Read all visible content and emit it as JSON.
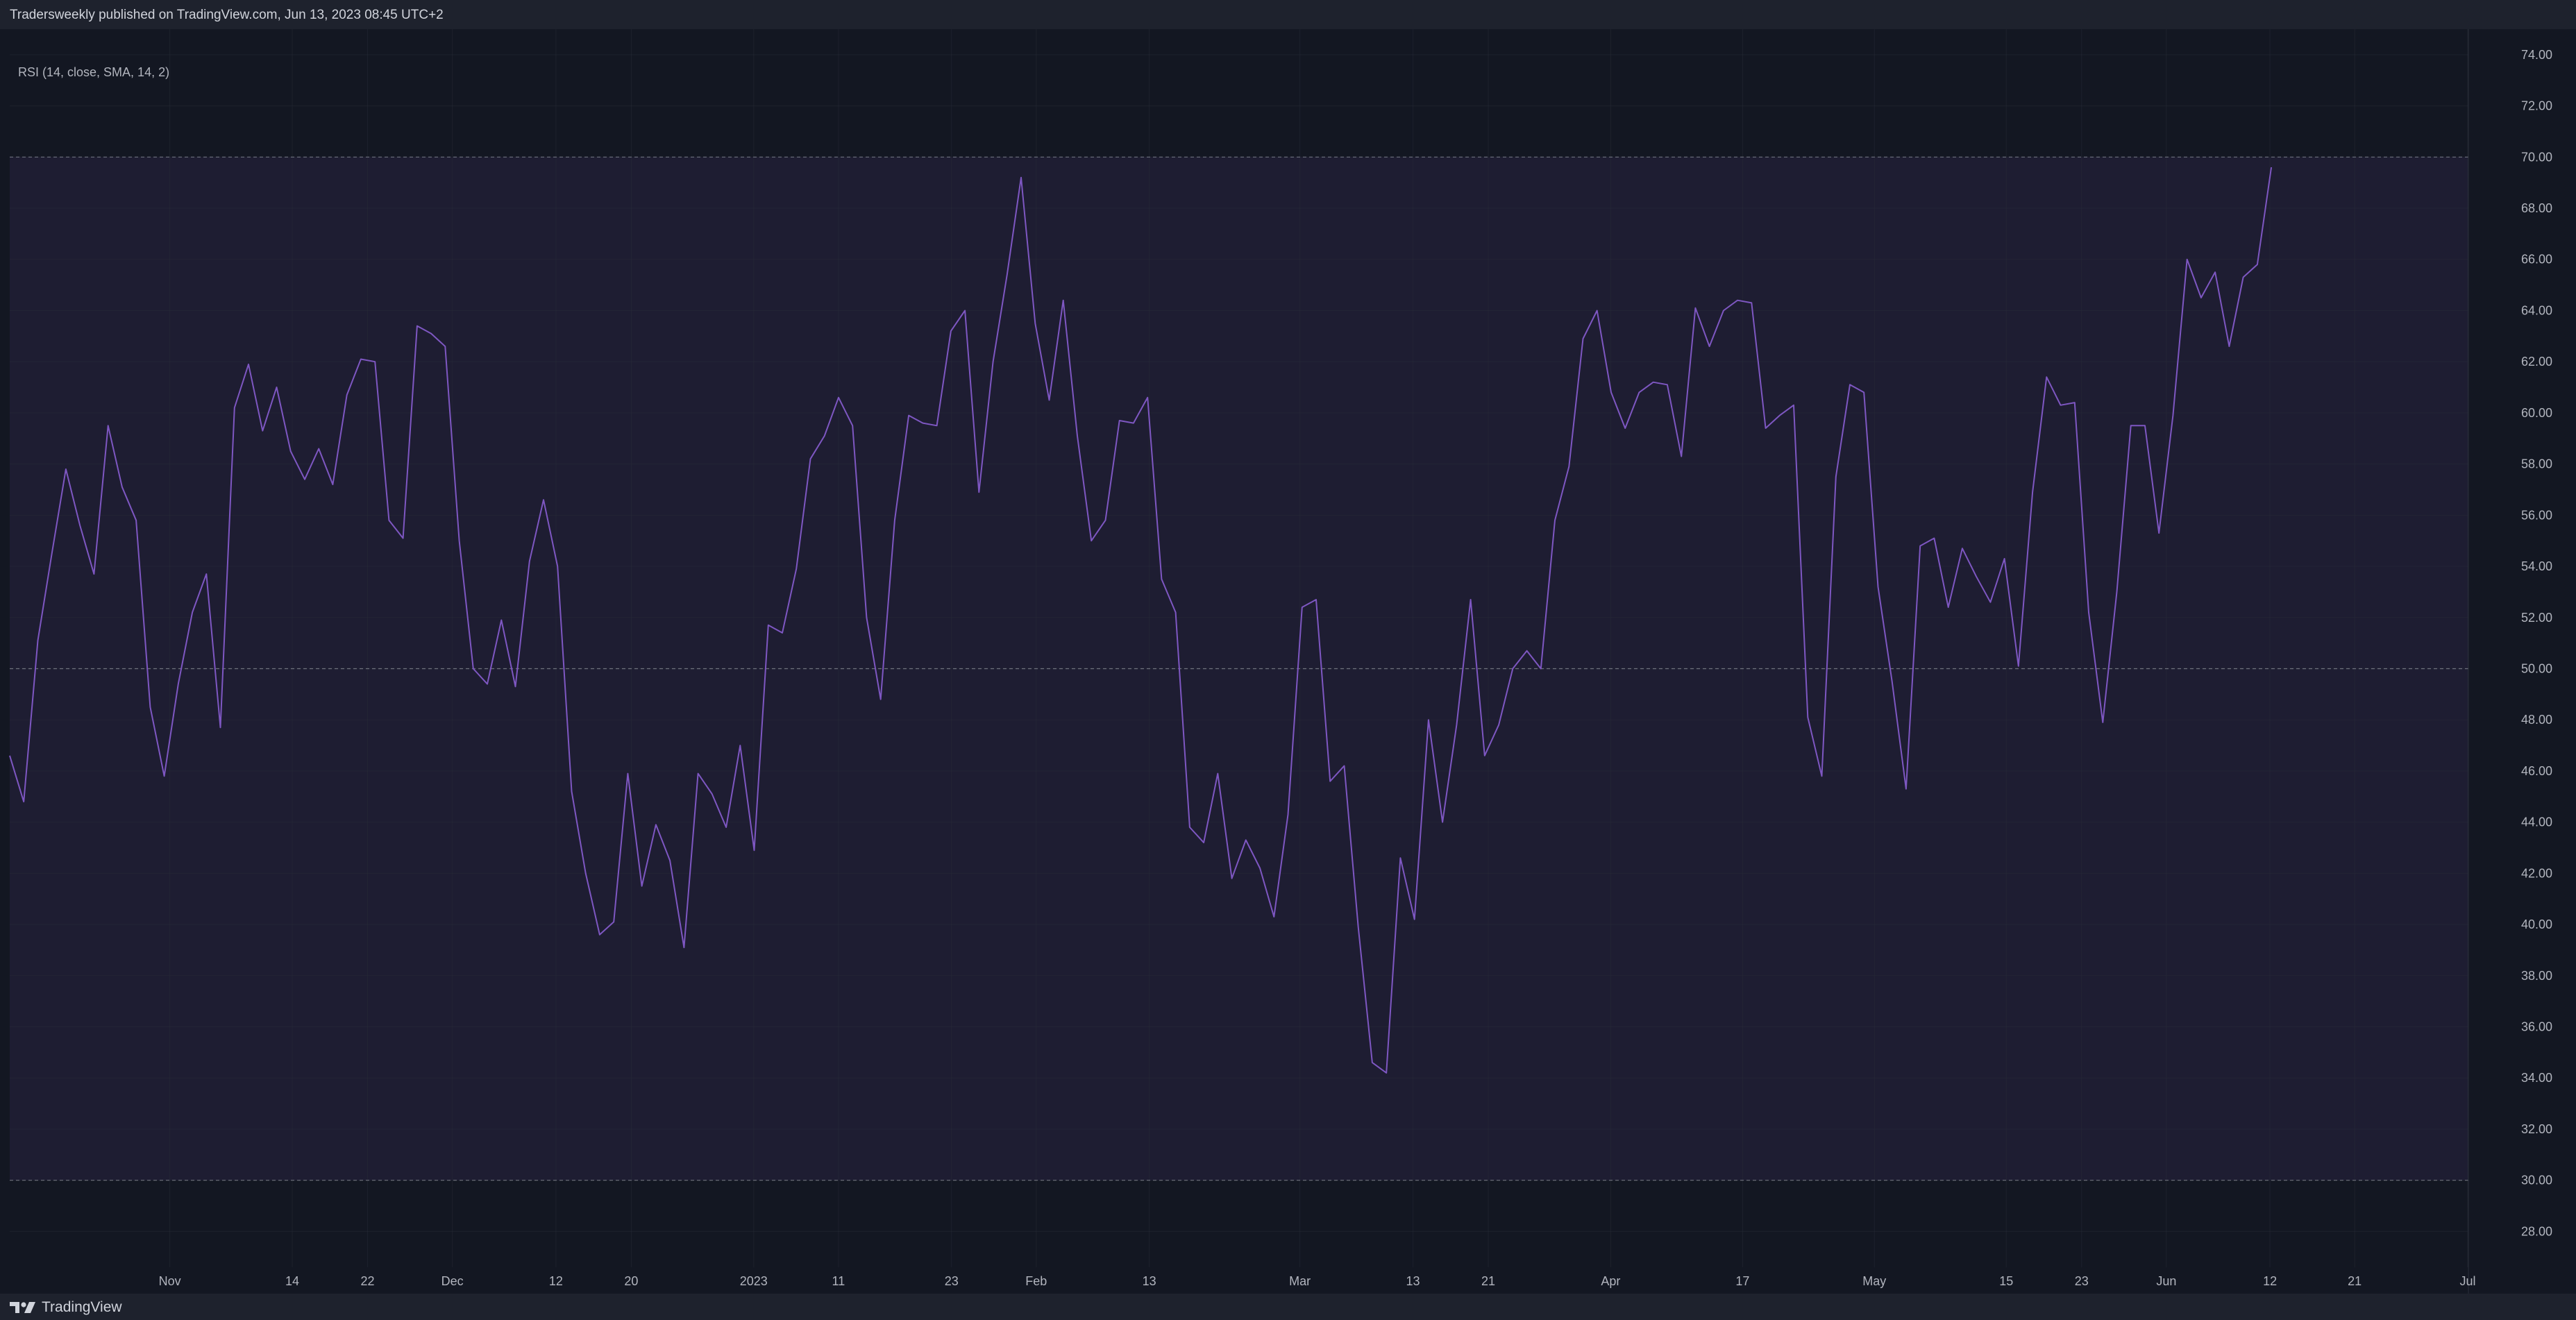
{
  "header": {
    "publisher_text": "Tradersweekly published on TradingView.com, Jun 13, 2023 08:45 UTC+2"
  },
  "indicator": {
    "label": "RSI (14, close, SMA, 14, 2)"
  },
  "footer": {
    "brand": "TradingView",
    "logo_icon": "tradingview-logo-icon"
  },
  "colors": {
    "background": "#131722",
    "frame": "#1e222d",
    "band_fill": "#7e57c2",
    "rsi_line": "#7e57c2",
    "band_line": "#787b86",
    "grid": "#2a2e39",
    "text": "#b2b5be"
  },
  "chart_data": {
    "type": "line",
    "title": "",
    "xlabel": "",
    "ylabel": "",
    "ylim": [
      26.6,
      75.0
    ],
    "grid": true,
    "y_ticks": [
      "28.00",
      "30.00",
      "32.00",
      "34.00",
      "36.00",
      "38.00",
      "40.00",
      "42.00",
      "44.00",
      "46.00",
      "48.00",
      "50.00",
      "52.00",
      "54.00",
      "56.00",
      "58.00",
      "60.00",
      "62.00",
      "64.00",
      "66.00",
      "68.00",
      "70.00",
      "72.00",
      "74.00"
    ],
    "x_tick_labels": [
      {
        "label": "Nov",
        "date": "2022-11-01"
      },
      {
        "label": "14",
        "date": "2022-11-14"
      },
      {
        "label": "22",
        "date": "2022-11-22"
      },
      {
        "label": "Dec",
        "date": "2022-12-01"
      },
      {
        "label": "12",
        "date": "2022-12-12"
      },
      {
        "label": "20",
        "date": "2022-12-20"
      },
      {
        "label": "2023",
        "date": "2023-01-02"
      },
      {
        "label": "11",
        "date": "2023-01-11"
      },
      {
        "label": "23",
        "date": "2023-01-23"
      },
      {
        "label": "Feb",
        "date": "2023-02-01"
      },
      {
        "label": "13",
        "date": "2023-02-13"
      },
      {
        "label": "Mar",
        "date": "2023-03-01"
      },
      {
        "label": "13",
        "date": "2023-03-13"
      },
      {
        "label": "21",
        "date": "2023-03-21"
      },
      {
        "label": "Apr",
        "date": "2023-04-03"
      },
      {
        "label": "17",
        "date": "2023-04-17"
      },
      {
        "label": "May",
        "date": "2023-05-01"
      },
      {
        "label": "15",
        "date": "2023-05-15"
      },
      {
        "label": "23",
        "date": "2023-05-23"
      },
      {
        "label": "Jun",
        "date": "2023-06-01"
      },
      {
        "label": "12",
        "date": "2023-06-12"
      },
      {
        "label": "21",
        "date": "2023-06-21"
      },
      {
        "label": "Jul",
        "date": "2023-07-03"
      }
    ],
    "bands": {
      "upper": 70,
      "middle": 50,
      "lower": 30
    },
    "series": [
      {
        "values": [
          46.6,
          44.8,
          51.1,
          54.5,
          57.8,
          55.6,
          53.7,
          59.5,
          57.1,
          55.8,
          48.5,
          45.8,
          49.4,
          52.2,
          53.7,
          47.7,
          60.2,
          61.9,
          59.3,
          61.0,
          58.5,
          57.4,
          58.6,
          57.2,
          60.7,
          62.1,
          62.0,
          55.8,
          55.1,
          63.4,
          63.1,
          62.6,
          55.0,
          50.0,
          49.4,
          51.9,
          49.3,
          54.2,
          56.6,
          54.0,
          45.2,
          42.0,
          39.6,
          40.1,
          45.9,
          41.5,
          43.9,
          42.5,
          39.1,
          45.9,
          45.1,
          43.8,
          47.0,
          42.9,
          51.7,
          51.4,
          53.9,
          58.2,
          59.1,
          60.6,
          59.5,
          52.0,
          48.8,
          55.8,
          59.9,
          59.6,
          59.5,
          63.2,
          64.0,
          56.9,
          62.0,
          65.4,
          69.2,
          63.5,
          60.5,
          64.4,
          59.1,
          55.0,
          55.8,
          59.7,
          59.6,
          60.6,
          53.5,
          52.2,
          43.8,
          43.2,
          45.9,
          41.8,
          43.3,
          42.2,
          40.3,
          44.3,
          52.4,
          52.7,
          45.6,
          46.2,
          39.9,
          34.6,
          34.2,
          42.6,
          40.2,
          48.0,
          44.0,
          47.8,
          52.7,
          46.6,
          47.8,
          50.0,
          50.7,
          50.0,
          55.8,
          57.9,
          62.9,
          64.0,
          60.8,
          59.4,
          60.8,
          61.2,
          61.1,
          58.3,
          64.1,
          62.6,
          64.0,
          64.4,
          64.3,
          59.4,
          59.9,
          60.3,
          48.1,
          45.8,
          57.5,
          61.1,
          60.8,
          53.2,
          49.5,
          45.3,
          54.8,
          55.1,
          52.4,
          54.7,
          53.6,
          52.6,
          54.3,
          50.1,
          56.9,
          61.4,
          60.3,
          60.4,
          52.2,
          47.9,
          53.0,
          59.5,
          59.5,
          55.3,
          59.9,
          66.0,
          64.5,
          65.5,
          62.6,
          65.3,
          65.8,
          69.6
        ]
      }
    ]
  }
}
